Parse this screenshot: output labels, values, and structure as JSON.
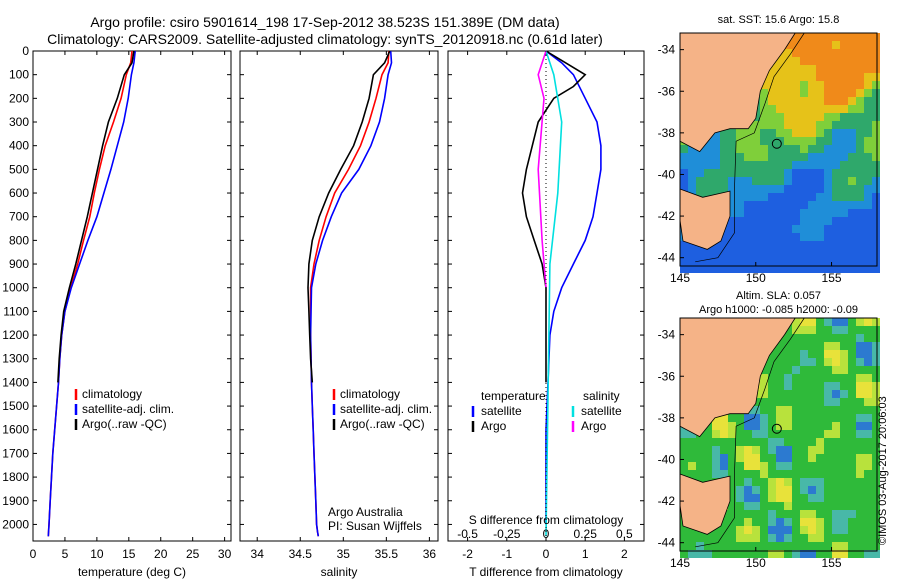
{
  "header": {
    "title_line1": "Argo profile: csiro 5901614_198 17-Sep-2012 38.523S 151.389E (DM data)",
    "title_line2": "Climatology: CARS2009. Satellite-adjusted climatology: synTS_20120918.nc (0.61d later)"
  },
  "map_panels": {
    "sst_title": "sat. SST: 15.6 Argo: 15.8",
    "sla_title_line1": "Altim. SLA: 0.057",
    "sla_title_line2": "Argo h1000: -0.085 h2000: -0.09",
    "lat_ticks": [
      "-34",
      "-36",
      "-38",
      "-40",
      "-42",
      "-44"
    ],
    "lon_ticks": [
      "145",
      "150",
      "155"
    ],
    "credit": "©IMOS 03-Aug-2017 20:06:03"
  },
  "colors": {
    "climatology": "#ff0000",
    "satellite": "#0000ff",
    "argo": "#000000",
    "argo_salinity": "#ff00ff",
    "sat_salinity": "#00e0e0",
    "land": "#f5b387"
  },
  "chart_data": [
    {
      "type": "line",
      "xlabel": "temperature (deg C)",
      "ylabel": "",
      "xlim": [
        0,
        31
      ],
      "ylim": [
        2070,
        0
      ],
      "xticks": [
        "0",
        "5",
        "10",
        "15",
        "20",
        "25",
        "30"
      ],
      "yticks": [
        "0",
        "100",
        "200",
        "300",
        "400",
        "500",
        "600",
        "700",
        "800",
        "900",
        "1000",
        "1100",
        "1200",
        "1300",
        "1400",
        "1500",
        "1600",
        "1700",
        "1800",
        "1900",
        "2000"
      ],
      "legend": [
        "climatology",
        "satellite-adj. clim.",
        "Argo(..raw -QC)"
      ],
      "series": [
        {
          "name": "climatology",
          "color": "#ff0000",
          "x": [
            15.5,
            15.3,
            14.6,
            13.8,
            12.6,
            11.3,
            10.4,
            9.6,
            8.9,
            7.9,
            7.0,
            5.9,
            5.0,
            4.5,
            4.2,
            4.0,
            3.7,
            3.4,
            3.1,
            2.9,
            2.7,
            2.5,
            2.4
          ],
          "y": [
            0,
            50,
            100,
            200,
            300,
            400,
            500,
            600,
            700,
            800,
            900,
            1000,
            1100,
            1200,
            1300,
            1400,
            1500,
            1600,
            1700,
            1800,
            1900,
            2000,
            2050
          ]
        },
        {
          "name": "satellite-adj. clim.",
          "color": "#0000ff",
          "x": [
            16.0,
            15.8,
            15.4,
            14.9,
            14.2,
            13.2,
            12.2,
            11.1,
            10.0,
            8.6,
            7.3,
            6.0,
            5.0,
            4.5,
            4.2,
            4.0,
            3.7,
            3.4,
            3.1,
            2.9,
            2.7,
            2.5,
            2.4
          ],
          "y": [
            0,
            50,
            100,
            200,
            300,
            400,
            500,
            600,
            700,
            800,
            900,
            1000,
            1100,
            1200,
            1300,
            1400,
            1500,
            1600,
            1700,
            1800,
            1900,
            2000,
            2050
          ]
        },
        {
          "name": "Argo(..raw -QC)",
          "color": "#000000",
          "x": [
            15.8,
            15.5,
            14.3,
            13.2,
            11.8,
            10.9,
            10.1,
            9.3,
            8.5,
            7.6,
            6.7,
            5.7,
            4.8,
            4.4,
            4.1,
            3.9
          ],
          "y": [
            0,
            50,
            100,
            200,
            300,
            400,
            500,
            600,
            700,
            800,
            900,
            1000,
            1100,
            1200,
            1300,
            1400
          ]
        }
      ]
    },
    {
      "type": "line",
      "xlabel": "salinity",
      "ylabel": "",
      "xlim": [
        33.8,
        36.1
      ],
      "ylim": [
        2070,
        0
      ],
      "xticks": [
        "34",
        "34.5",
        "35",
        "35.5",
        "36"
      ],
      "legend": [
        "climatology",
        "satellite-adj. clim.",
        "Argo(..raw -QC)"
      ],
      "annotations": [
        "Argo Australia",
        "PI: Susan Wijffels"
      ],
      "series": [
        {
          "name": "climatology",
          "color": "#ff0000",
          "x": [
            35.53,
            35.52,
            35.45,
            35.38,
            35.3,
            35.2,
            35.06,
            34.9,
            34.8,
            34.72,
            34.66,
            34.62,
            34.62,
            34.63,
            34.64,
            34.65,
            34.66,
            34.67,
            34.68,
            34.69,
            34.7,
            34.71
          ],
          "y": [
            0,
            50,
            100,
            200,
            300,
            400,
            500,
            600,
            700,
            800,
            900,
            1000,
            1200,
            1400,
            1500,
            1600,
            1700,
            1800,
            1900,
            2000,
            2030,
            2050
          ]
        },
        {
          "name": "satellite-adj. clim.",
          "color": "#0000ff",
          "x": [
            35.55,
            35.56,
            35.52,
            35.48,
            35.42,
            35.32,
            35.18,
            34.98,
            34.86,
            34.76,
            34.68,
            34.63,
            34.62,
            34.63,
            34.64,
            34.65,
            34.66,
            34.67,
            34.68,
            34.69,
            34.7,
            34.71
          ],
          "y": [
            0,
            50,
            100,
            200,
            300,
            400,
            500,
            600,
            700,
            800,
            900,
            1000,
            1200,
            1400,
            1500,
            1600,
            1700,
            1800,
            1900,
            2000,
            2030,
            2050
          ]
        },
        {
          "name": "Argo(..raw -QC)",
          "color": "#000000",
          "x": [
            35.54,
            35.48,
            35.35,
            35.3,
            35.22,
            35.12,
            34.97,
            34.83,
            34.72,
            34.64,
            34.6,
            34.59,
            34.6,
            34.61,
            34.62,
            34.64
          ],
          "y": [
            0,
            50,
            100,
            200,
            300,
            400,
            500,
            600,
            700,
            800,
            900,
            1000,
            1100,
            1200,
            1300,
            1400
          ]
        }
      ]
    },
    {
      "type": "line",
      "xlabel": "T difference from climatology",
      "x2label": "S difference from climatology",
      "ylabel": "",
      "xlim": [
        -2.5,
        2.5
      ],
      "ylim": [
        2070,
        0
      ],
      "xticks": [
        "-2",
        "-1",
        "0",
        "1",
        "2"
      ],
      "x2ticks": [
        "-0.5",
        "-0.25",
        "0",
        "0.25",
        "0.5"
      ],
      "legend_titles": [
        "temperature",
        "salinity"
      ],
      "legend": [
        "satellite",
        "Argo",
        "satellite",
        "Argo"
      ],
      "series": [
        {
          "name": "satellite",
          "color": "#0000ff",
          "x": [
            0.0,
            0.4,
            0.7,
            1.0,
            1.3,
            1.4,
            1.4,
            1.3,
            1.2,
            1.0,
            0.7,
            0.4,
            0.2,
            0.1,
            0.05,
            0.0,
            0.0,
            0.0
          ],
          "y": [
            0,
            50,
            100,
            200,
            300,
            400,
            500,
            600,
            700,
            800,
            900,
            1000,
            1100,
            1200,
            1400,
            1600,
            1800,
            2000
          ]
        },
        {
          "name": "Argo",
          "color": "#000000",
          "x": [
            0.0,
            0.5,
            1.0,
            0.7,
            0.2,
            -0.2,
            -0.5,
            -0.6,
            -0.5,
            -0.3,
            -0.1,
            0.0,
            0.0,
            0.0,
            0.0
          ],
          "y": [
            0,
            50,
            100,
            150,
            200,
            300,
            500,
            600,
            700,
            800,
            900,
            1000,
            1100,
            1200,
            1400
          ]
        },
        {
          "name": "satellite",
          "color": "#00e0e0",
          "x": [
            0.0,
            0.2,
            0.4,
            0.3,
            0.1,
            0.0
          ],
          "y": [
            0,
            100,
            300,
            600,
            900,
            2050
          ]
        },
        {
          "name": "Argo",
          "color": "#ff00ff",
          "x": [
            0.0,
            -0.2,
            -0.05,
            -0.2,
            -0.1,
            0.0
          ],
          "y": [
            0,
            100,
            200,
            500,
            800,
            1000
          ]
        }
      ]
    }
  ]
}
